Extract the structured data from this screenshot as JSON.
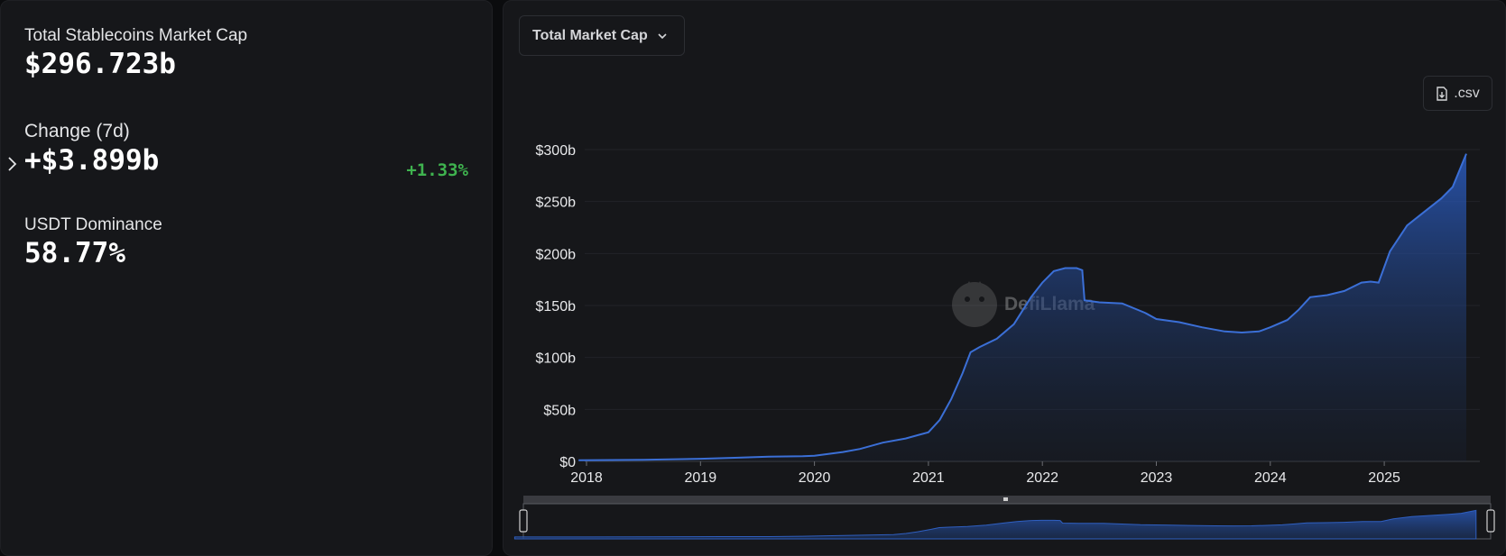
{
  "stats": {
    "total_label": "Total Stablecoins Market Cap",
    "total_value": "$296.723b",
    "change_label": "Change (7d)",
    "change_value": "+$3.899b",
    "change_pct": "+1.33%",
    "dominance_label": "USDT Dominance",
    "dominance_value": "58.77%"
  },
  "controls": {
    "dropdown_label": "Total Market Cap",
    "csv_label": ".csv"
  },
  "watermark": "DefiLlama",
  "colors": {
    "line": "#3b6fd6",
    "positive": "#3fb34f"
  },
  "chart_data": {
    "type": "area",
    "xlabel": "",
    "ylabel": "",
    "ylim": [
      0,
      300
    ],
    "y_ticks": [
      "$0",
      "$50b",
      "$100b",
      "$150b",
      "$200b",
      "$250b",
      "$300b"
    ],
    "x_ticks": [
      "2018",
      "2019",
      "2020",
      "2021",
      "2022",
      "2023",
      "2024",
      "2025"
    ],
    "series": [
      {
        "x": [
          2017.93,
          2018.5,
          2019.0,
          2019.3,
          2019.6,
          2019.9,
          2020.0,
          2020.25,
          2020.4,
          2020.6,
          2020.8,
          2021.0,
          2021.1,
          2021.2,
          2021.3,
          2021.37,
          2021.45,
          2021.6,
          2021.75,
          2021.9,
          2022.0,
          2022.1,
          2022.2,
          2022.3,
          2022.35,
          2022.37,
          2022.5,
          2022.7,
          2022.9,
          2023.0,
          2023.2,
          2023.4,
          2023.6,
          2023.75,
          2023.9,
          2024.0,
          2024.15,
          2024.25,
          2024.35,
          2024.5,
          2024.65,
          2024.8,
          2024.88,
          2024.95,
          2025.05,
          2025.2,
          2025.35,
          2025.5,
          2025.6,
          2025.72
        ],
        "values": [
          1,
          1.5,
          2.5,
          3.5,
          4.5,
          5,
          5.5,
          9,
          12,
          18,
          22,
          28,
          40,
          60,
          85,
          105,
          110,
          118,
          132,
          158,
          172,
          183,
          186,
          186,
          184,
          155,
          153,
          152,
          143,
          137,
          134,
          129,
          125,
          124,
          125,
          129,
          136,
          146,
          158,
          160,
          164,
          172,
          173,
          172,
          202,
          227,
          240,
          253,
          264,
          296
        ]
      }
    ]
  }
}
